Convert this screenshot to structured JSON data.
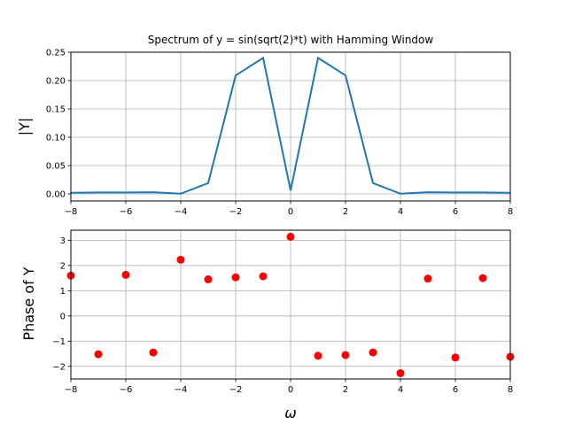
{
  "chart_data": [
    {
      "type": "line",
      "title": "Spectrum of y = sin(sqrt(2)*t) with Hamming Window",
      "xlabel": "",
      "ylabel": "|Y|",
      "xlim": [
        -8,
        8
      ],
      "ylim": [
        -0.0125,
        0.25
      ],
      "grid": true,
      "color": "#1f77b4",
      "x": [
        -8,
        -7,
        -6,
        -5,
        -4,
        -3,
        -2,
        -1,
        0,
        1,
        2,
        3,
        4,
        5,
        6,
        7,
        8
      ],
      "y": [
        0.002,
        0.0025,
        0.0025,
        0.003,
        0.0003,
        0.019,
        0.209,
        0.24,
        0.006,
        0.24,
        0.209,
        0.019,
        0.0003,
        0.003,
        0.0025,
        0.0025,
        0.002
      ],
      "xticks": [
        "−8",
        "−6",
        "−4",
        "−2",
        "0",
        "2",
        "4",
        "6",
        "8"
      ],
      "yticks": [
        "0.00",
        "0.05",
        "0.10",
        "0.15",
        "0.20",
        "0.25"
      ]
    },
    {
      "type": "scatter",
      "title": "",
      "xlabel": "ω",
      "ylabel": "Phase of Y",
      "xlim": [
        -8,
        8
      ],
      "ylim": [
        -2.5,
        3.4
      ],
      "grid": true,
      "color": "#ff0000",
      "x": [
        -8,
        -7,
        -6,
        -5,
        -4,
        -3,
        -2,
        -1,
        0,
        1,
        2,
        3,
        4,
        5,
        6,
        7,
        8
      ],
      "y": [
        1.6,
        -1.52,
        1.63,
        -1.45,
        2.23,
        1.45,
        1.53,
        1.57,
        3.14,
        -1.58,
        -1.55,
        -1.45,
        -2.27,
        1.48,
        -1.65,
        1.5,
        -1.62
      ],
      "xticks": [
        "−8",
        "−6",
        "−4",
        "−2",
        "0",
        "2",
        "4",
        "6",
        "8"
      ],
      "yticks": [
        "−2",
        "−1",
        "0",
        "1",
        "2",
        "3"
      ]
    }
  ]
}
